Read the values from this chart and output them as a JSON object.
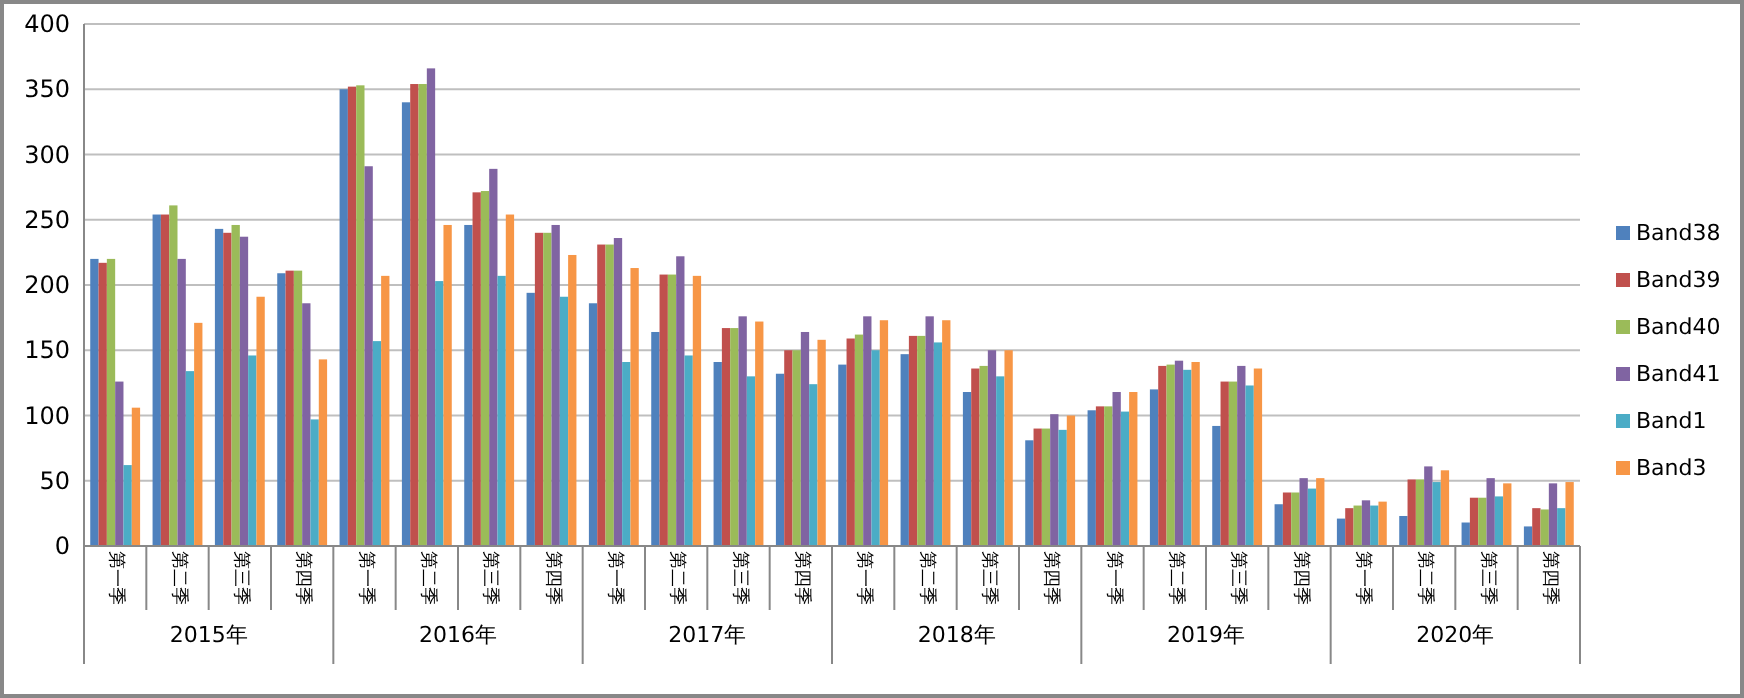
{
  "chart_data": {
    "type": "bar",
    "categories": [
      "第一季",
      "第二季",
      "第三季",
      "第四季",
      "第一季",
      "第二季",
      "第三季",
      "第四季",
      "第一季",
      "第二季",
      "第三季",
      "第四季",
      "第一季",
      "第二季",
      "第三季",
      "第四季",
      "第一季",
      "第二季",
      "第三季",
      "第四季",
      "第一季",
      "第二季",
      "第三季",
      "第四季"
    ],
    "annotations": [
      "2015年",
      "2016年",
      "2017年",
      "2018年",
      "2019年",
      "2020年"
    ],
    "series": [
      {
        "name": "Band38",
        "color": "#4f81bd",
        "values": [
          220,
          254,
          243,
          209,
          350,
          340,
          246,
          194,
          186,
          164,
          141,
          132,
          139,
          147,
          118,
          81,
          104,
          120,
          92,
          32,
          21,
          23,
          18,
          15
        ]
      },
      {
        "name": "Band39",
        "color": "#c0504d",
        "values": [
          217,
          254,
          240,
          211,
          352,
          354,
          271,
          240,
          231,
          208,
          167,
          150,
          159,
          161,
          136,
          90,
          107,
          138,
          126,
          41,
          29,
          51,
          37,
          29
        ]
      },
      {
        "name": "Band40",
        "color": "#9bbb59",
        "values": [
          220,
          261,
          246,
          211,
          353,
          354,
          272,
          240,
          231,
          208,
          167,
          150,
          162,
          161,
          138,
          90,
          107,
          139,
          126,
          41,
          31,
          51,
          37,
          28
        ]
      },
      {
        "name": "Band41",
        "color": "#8064a2",
        "values": [
          126,
          220,
          237,
          186,
          291,
          366,
          289,
          246,
          236,
          222,
          176,
          164,
          176,
          176,
          150,
          101,
          118,
          142,
          138,
          52,
          35,
          61,
          52,
          48
        ]
      },
      {
        "name": "Band1",
        "color": "#4bacc6",
        "values": [
          62,
          134,
          146,
          97,
          157,
          203,
          207,
          191,
          141,
          146,
          130,
          124,
          150,
          156,
          130,
          89,
          103,
          135,
          123,
          44,
          31,
          49,
          38,
          29
        ]
      },
      {
        "name": "Band3",
        "color": "#f79646",
        "values": [
          106,
          171,
          191,
          143,
          207,
          246,
          254,
          223,
          213,
          207,
          172,
          158,
          173,
          173,
          150,
          100,
          118,
          141,
          136,
          52,
          34,
          58,
          48,
          49
        ]
      }
    ],
    "ylim": [
      0,
      400
    ],
    "yticks": [
      0,
      50,
      100,
      150,
      200,
      250,
      300,
      350,
      400
    ],
    "grid": "y",
    "legend": "right"
  }
}
